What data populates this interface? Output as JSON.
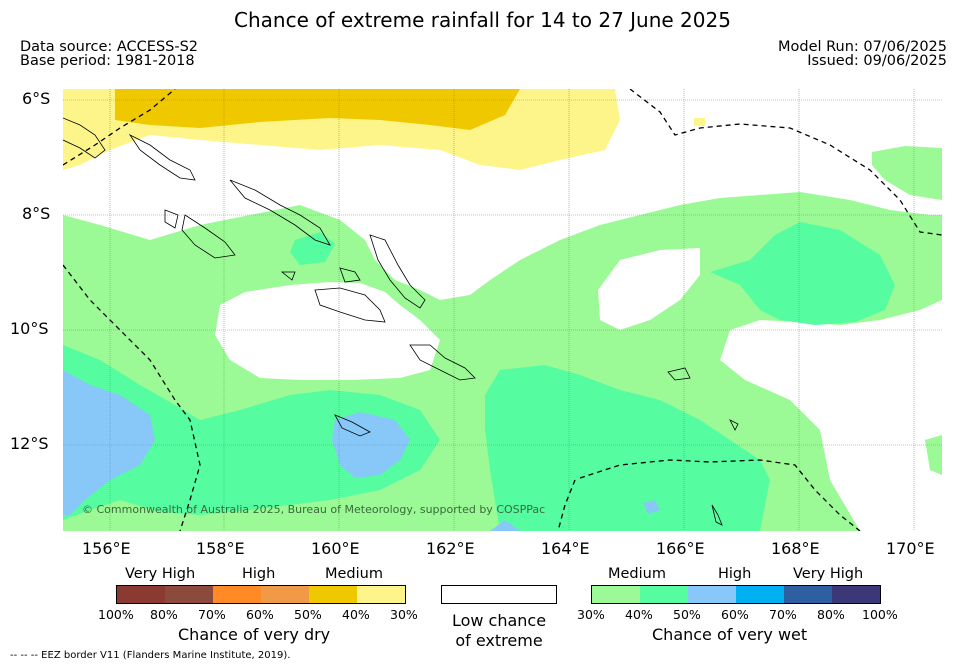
{
  "title": "Chance of extreme rainfall for 14 to 27 June 2025",
  "meta": {
    "data_source": "Data source: ACCESS-S2",
    "base_period": "Base period: 1981-2018",
    "model_run": "Model Run: 07/06/2025",
    "issued": "Issued: 09/06/2025"
  },
  "map": {
    "lat_labels": [
      "6°S",
      "8°S",
      "10°S",
      "12°S"
    ],
    "lon_labels": [
      "156°E",
      "158°E",
      "160°E",
      "162°E",
      "164°E",
      "166°E",
      "168°E",
      "170°E"
    ],
    "copyright": "© Commonwealth of Australia 2025, Bureau of Meteorology, supported by COSPPac",
    "colors": {
      "ocean_bg": "#ffffff",
      "dry_medium": "#f0c800",
      "dry_lowmed": "#fdf58a",
      "wet_30_40": "#9bfa96",
      "wet_40_50": "#55fca0",
      "wet_50_60": "#88c8f8"
    }
  },
  "legend": {
    "dry": {
      "heads": [
        "Very High",
        "High",
        "Medium"
      ],
      "ticks": [
        "100%",
        "80%",
        "70%",
        "60%",
        "50%",
        "40%",
        "30%"
      ],
      "title": "Chance of very dry",
      "colors": [
        "#8b3a32",
        "#8c4a3c",
        "#ff8a26",
        "#f09a48",
        "#f0c800",
        "#fdf58a"
      ]
    },
    "low": {
      "label_line1": "Low chance",
      "label_line2": "of extreme",
      "color": "#ffffff"
    },
    "wet": {
      "heads": [
        "Medium",
        "High",
        "Very High"
      ],
      "ticks": [
        "30%",
        "40%",
        "50%",
        "60%",
        "70%",
        "80%",
        "100%"
      ],
      "title": "Chance of very wet",
      "colors": [
        "#9bfa96",
        "#55fca0",
        "#88c8f8",
        "#00b0f0",
        "#2e5fa0",
        "#3c3878"
      ]
    }
  },
  "footnote": "-- -- -- EEZ border V11 (Flanders Marine Institute, 2019)."
}
